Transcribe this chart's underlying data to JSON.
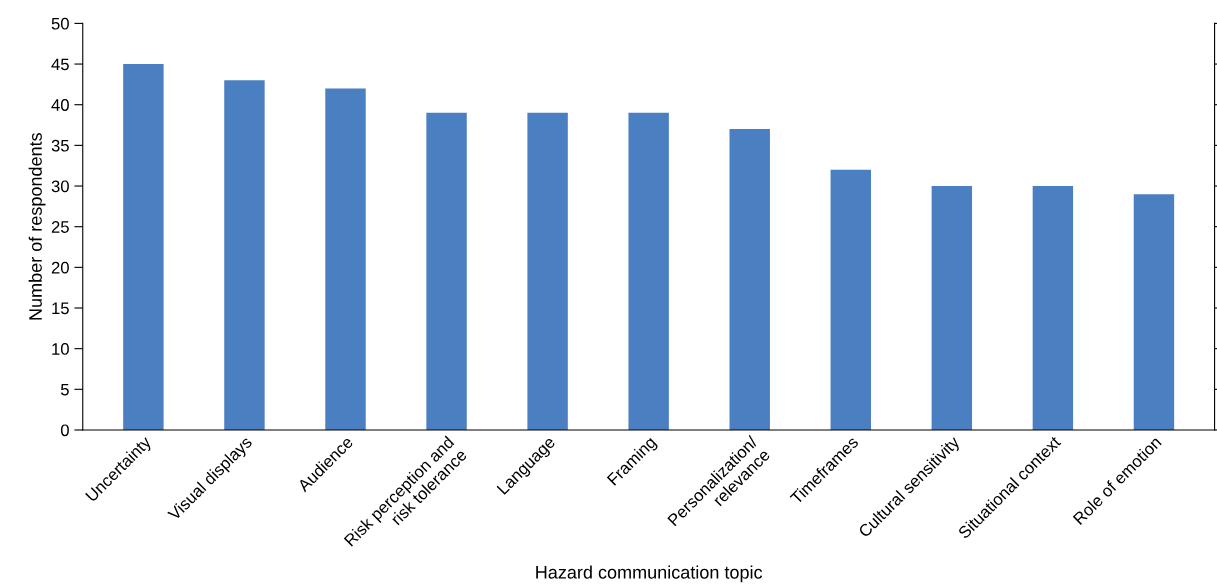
{
  "chart_data": {
    "type": "bar",
    "xlabel": "Hazard communication topic",
    "ylabel": "Number of respondents",
    "categories": [
      "Uncertainty",
      "Visual displays",
      "Audience",
      "Risk perception and\nrisk tolerance",
      "Language",
      "Framing",
      "Personalization/\nrelevance",
      "Timeframes",
      "Cultural sensitivity",
      "Situational context",
      "Role of emotion"
    ],
    "values": [
      45,
      43,
      42,
      39,
      39,
      39,
      37,
      32,
      30,
      30,
      29
    ],
    "color": "#4a7fc1",
    "ylim": [
      0,
      50
    ],
    "yticks": [
      0,
      5,
      10,
      15,
      20,
      25,
      30,
      35,
      40,
      45,
      50
    ],
    "grid": false
  }
}
